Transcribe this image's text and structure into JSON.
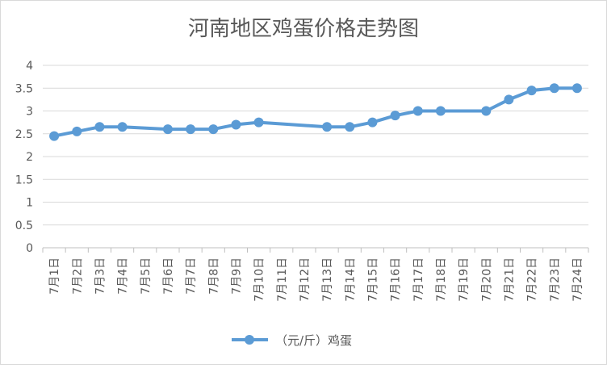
{
  "chart_data": {
    "type": "line",
    "title": "河南地区鸡蛋价格走势图",
    "categories": [
      "7月1日",
      "7月2日",
      "7月3日",
      "7月4日",
      "7月5日",
      "7月6日",
      "7月7日",
      "7月8日",
      "7月9日",
      "7月10日",
      "7月11日",
      "7月12日",
      "7月13日",
      "7月14日",
      "7月15日",
      "7月16日",
      "7月17日",
      "7月18日",
      "7月19日",
      "7月20日",
      "7月21日",
      "7月22日",
      "7月23日",
      "7月24日"
    ],
    "series": [
      {
        "name": "（元/斤）鸡蛋",
        "color": "#5b9bd5",
        "values": [
          2.45,
          2.55,
          2.65,
          2.65,
          null,
          2.6,
          2.6,
          2.6,
          2.7,
          2.75,
          null,
          null,
          2.65,
          2.65,
          2.75,
          2.9,
          3.0,
          3.0,
          null,
          3.0,
          3.25,
          3.45,
          3.5,
          3.5
        ]
      }
    ],
    "yticks": [
      "0",
      "0.5",
      "1",
      "1.5",
      "2",
      "2.5",
      "3",
      "3.5",
      "4"
    ],
    "ylim": [
      0,
      4
    ],
    "grid": true,
    "legend_position": "bottom"
  }
}
